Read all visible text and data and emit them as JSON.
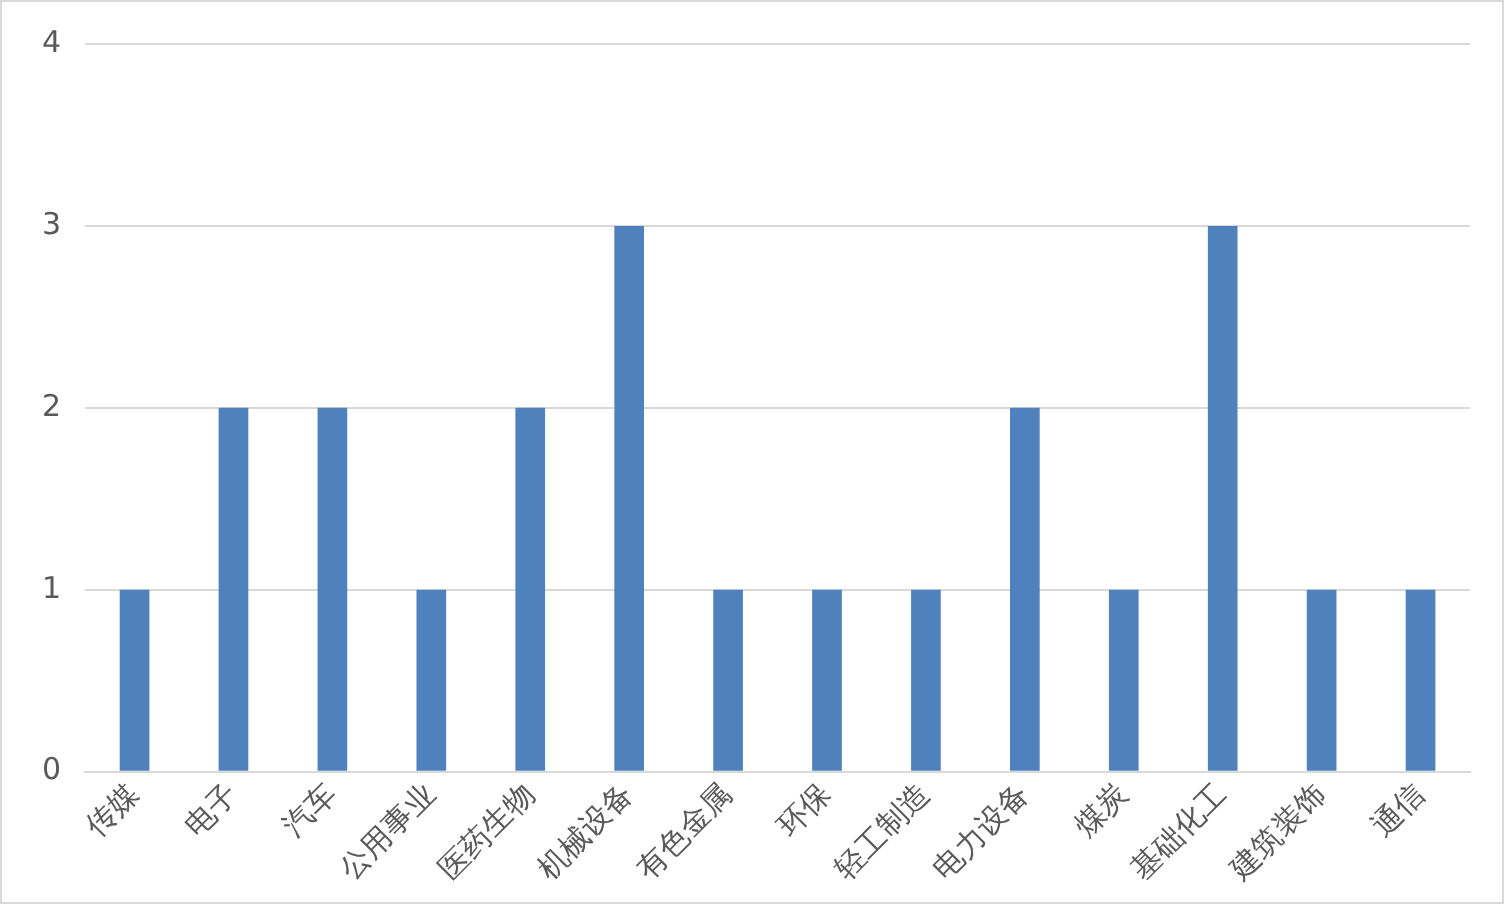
{
  "chart_data": {
    "type": "bar",
    "categories": [
      "传媒",
      "电子",
      "汽车",
      "公用事业",
      "医药生物",
      "机械设备",
      "有色金属",
      "环保",
      "轻工制造",
      "电力设备",
      "煤炭",
      "基础化工",
      "建筑装饰",
      "通信"
    ],
    "values": [
      1,
      2,
      2,
      1,
      2,
      3,
      1,
      1,
      1,
      2,
      1,
      3,
      1,
      1
    ],
    "color": "#4f81bd",
    "ylim": [
      0,
      4
    ],
    "yticks": [
      0,
      1,
      2,
      3,
      4
    ],
    "grid": "y",
    "legend": false
  }
}
